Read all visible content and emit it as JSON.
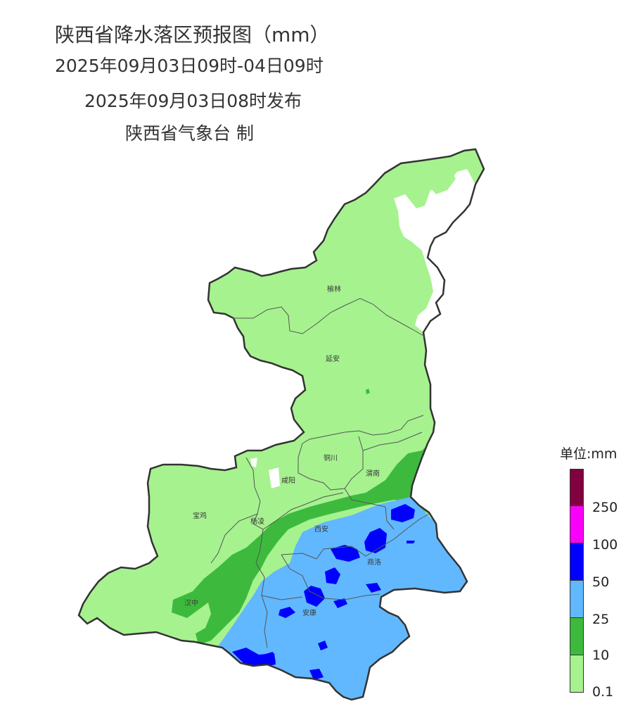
{
  "header": {
    "title": "陕西省降水落区预报图（mm）",
    "period": "2025年09月03日09时-04日09时",
    "issued": "2025年09月03日08时发布",
    "issuer": "陕西省气象台 制"
  },
  "map": {
    "cities": [
      "榆林",
      "延安",
      "铜川",
      "渭南",
      "咸阳",
      "宝鸡",
      "杨凌",
      "西安",
      "商洛",
      "汉中",
      "安康"
    ],
    "colors": {
      "light_green": "#a6f28f",
      "green": "#3dba3d",
      "light_blue": "#61b8ff",
      "blue": "#0000fe",
      "magenta": "#fa00fa",
      "maroon": "#800040",
      "outline": "#333333"
    }
  },
  "legend": {
    "title": "单位:mm",
    "ticks": [
      "250",
      "100",
      "50",
      "25",
      "10",
      "0.1"
    ],
    "colors": [
      "#800040",
      "#fa00fa",
      "#0000fe",
      "#61b8ff",
      "#3dba3d",
      "#a6f28f"
    ]
  }
}
